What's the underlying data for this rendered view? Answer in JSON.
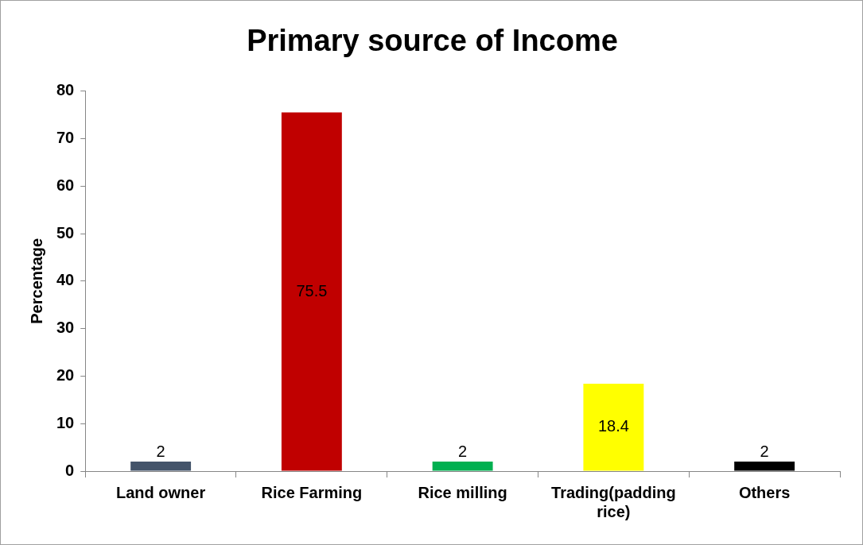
{
  "chart_data": {
    "type": "bar",
    "title": "Primary source of Income",
    "ylabel": "Percentage",
    "categories": [
      "Land owner",
      "Rice Farming",
      "Rice milling",
      "Trading(padding rice)",
      "Others"
    ],
    "values": [
      2,
      75.5,
      2,
      18.4,
      2
    ],
    "colors": [
      "#44546a",
      "#c00000",
      "#00b050",
      "#ffff00",
      "#000000"
    ],
    "ylim": [
      0,
      80
    ],
    "yticks": [
      0,
      10,
      20,
      30,
      40,
      50,
      60,
      70,
      80
    ],
    "grid": false,
    "legend": false,
    "data_labels": true
  }
}
